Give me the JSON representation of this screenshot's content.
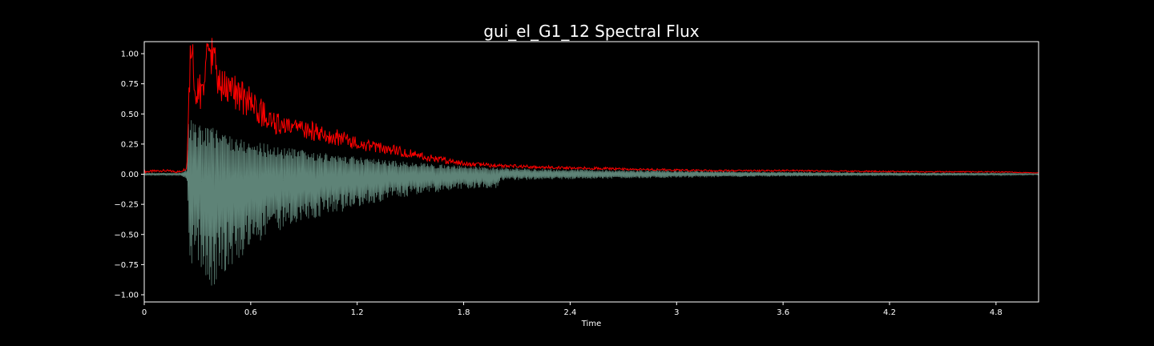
{
  "chart_data": {
    "type": "line",
    "title": "gui_el_G1_12 Spectral Flux",
    "xlabel": "Time",
    "ylabel": "",
    "xlim": [
      0,
      5.04
    ],
    "ylim": [
      -1.05,
      1.1
    ],
    "x_ticks": [
      0,
      0.6,
      1.2,
      1.8,
      2.4,
      3,
      3.6,
      4.2,
      4.8
    ],
    "x_tick_labels": [
      "0",
      "0.6",
      "1.2",
      "1.8",
      "2.4",
      "3",
      "3.6",
      "4.2",
      "4.8"
    ],
    "y_ticks": [
      1.0,
      0.75,
      0.5,
      0.25,
      0.0,
      -0.25,
      -0.5,
      -0.75,
      -1.0
    ],
    "y_tick_labels": [
      "1.00",
      "0.75",
      "0.50",
      "0.25",
      "0.00",
      "−0.25",
      "−0.50",
      "−0.75",
      "−1.00"
    ],
    "grid": false,
    "series": [
      {
        "color": "#ff0000",
        "points": [
          [
            0,
            0.02
          ],
          [
            0.1,
            0.03
          ],
          [
            0.2,
            0.02
          ],
          [
            0.24,
            0.05
          ],
          [
            0.25,
            0.55
          ],
          [
            0.26,
            0.95
          ],
          [
            0.27,
            1.0
          ],
          [
            0.29,
            0.62
          ],
          [
            0.32,
            0.7
          ],
          [
            0.35,
            0.88
          ],
          [
            0.38,
            1.0
          ],
          [
            0.42,
            0.74
          ],
          [
            0.5,
            0.68
          ],
          [
            0.6,
            0.6
          ],
          [
            0.7,
            0.45
          ],
          [
            0.8,
            0.38
          ],
          [
            0.9,
            0.37
          ],
          [
            1.0,
            0.34
          ],
          [
            1.1,
            0.3
          ],
          [
            1.2,
            0.25
          ],
          [
            1.3,
            0.22
          ],
          [
            1.4,
            0.2
          ],
          [
            1.5,
            0.17
          ],
          [
            1.6,
            0.14
          ],
          [
            1.7,
            0.11
          ],
          [
            1.8,
            0.09
          ],
          [
            2.0,
            0.07
          ],
          [
            2.2,
            0.06
          ],
          [
            2.5,
            0.05
          ],
          [
            2.8,
            0.04
          ],
          [
            3.2,
            0.03
          ],
          [
            3.6,
            0.03
          ],
          [
            4.0,
            0.025
          ],
          [
            4.4,
            0.02
          ],
          [
            4.8,
            0.02
          ],
          [
            5.04,
            0.01
          ]
        ]
      },
      {
        "color": "#6f9a8c",
        "envelope": [
          [
            0,
            0.01
          ],
          [
            0.2,
            0.01
          ],
          [
            0.24,
            0.04
          ],
          [
            0.25,
            0.5
          ],
          [
            0.27,
            0.45
          ],
          [
            0.3,
            0.4
          ],
          [
            0.35,
            0.42
          ],
          [
            0.38,
            0.4
          ],
          [
            0.45,
            0.36
          ],
          [
            0.55,
            0.3
          ],
          [
            0.7,
            0.25
          ],
          [
            0.9,
            0.2
          ],
          [
            1.1,
            0.16
          ],
          [
            1.3,
            0.13
          ],
          [
            1.5,
            0.1
          ],
          [
            1.8,
            0.07
          ],
          [
            2.1,
            0.05
          ],
          [
            2.5,
            0.04
          ],
          [
            3.0,
            0.03
          ],
          [
            3.6,
            0.02
          ],
          [
            4.2,
            0.015
          ],
          [
            4.8,
            0.01
          ],
          [
            5.04,
            0.005
          ]
        ],
        "neg_peaks": [
          [
            0.26,
            -0.9
          ],
          [
            0.3,
            -0.7
          ],
          [
            0.35,
            -0.93
          ],
          [
            0.38,
            -0.97
          ],
          [
            0.45,
            -0.82
          ],
          [
            0.55,
            -0.68
          ],
          [
            0.7,
            -0.5
          ],
          [
            0.9,
            -0.4
          ],
          [
            1.1,
            -0.32
          ],
          [
            1.3,
            -0.24
          ],
          [
            1.5,
            -0.18
          ],
          [
            1.8,
            -0.12
          ]
        ]
      }
    ]
  }
}
